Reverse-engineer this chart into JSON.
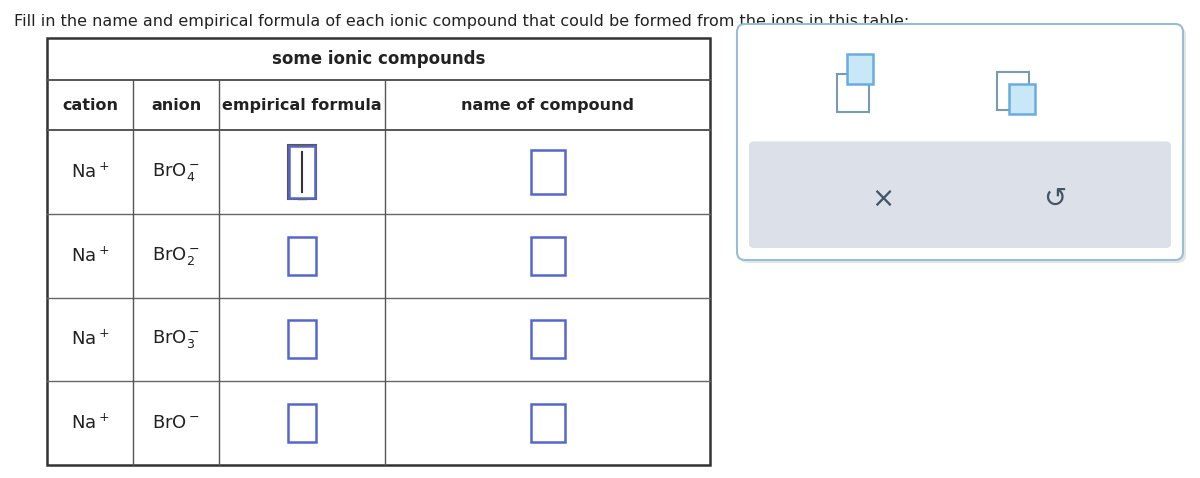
{
  "title_text": "Fill in the name and empirical formula of each ionic compound that could be formed from the ions in this table:",
  "table_title": "some ionic compounds",
  "col_headers": [
    "cation",
    "anion",
    "empirical formula",
    "name of compound"
  ],
  "cation_texts": [
    "Na$^+$",
    "Na$^+$",
    "Na$^+$",
    "Na$^+$"
  ],
  "anion_texts": [
    "BrO$_4^-$",
    "BrO$_2^-$",
    "BrO$_3^-$",
    "BrO$^-$"
  ],
  "bg_color": "#ffffff",
  "table_border_color": "#555555",
  "input_box_color_blue": "#5566cc",
  "input_box_color_dark": "#555555",
  "widget_border_color": "#9bbdd4",
  "widget_bg": "#ffffff",
  "widget_bottom_bg": "#dce0e8",
  "x_color": "#445566",
  "undo_color": "#445566",
  "title_fontsize": 11.5,
  "header_fontsize": 11.5,
  "cell_fontsize": 13,
  "table_title_fontsize": 12,
  "icon_sq_color_back": "#7a9ab0",
  "icon_sq_color_front": "#6aace0",
  "icon_sq_fill_front": "#c8e8f8",
  "icon_sq_fill_back": "#ffffff"
}
